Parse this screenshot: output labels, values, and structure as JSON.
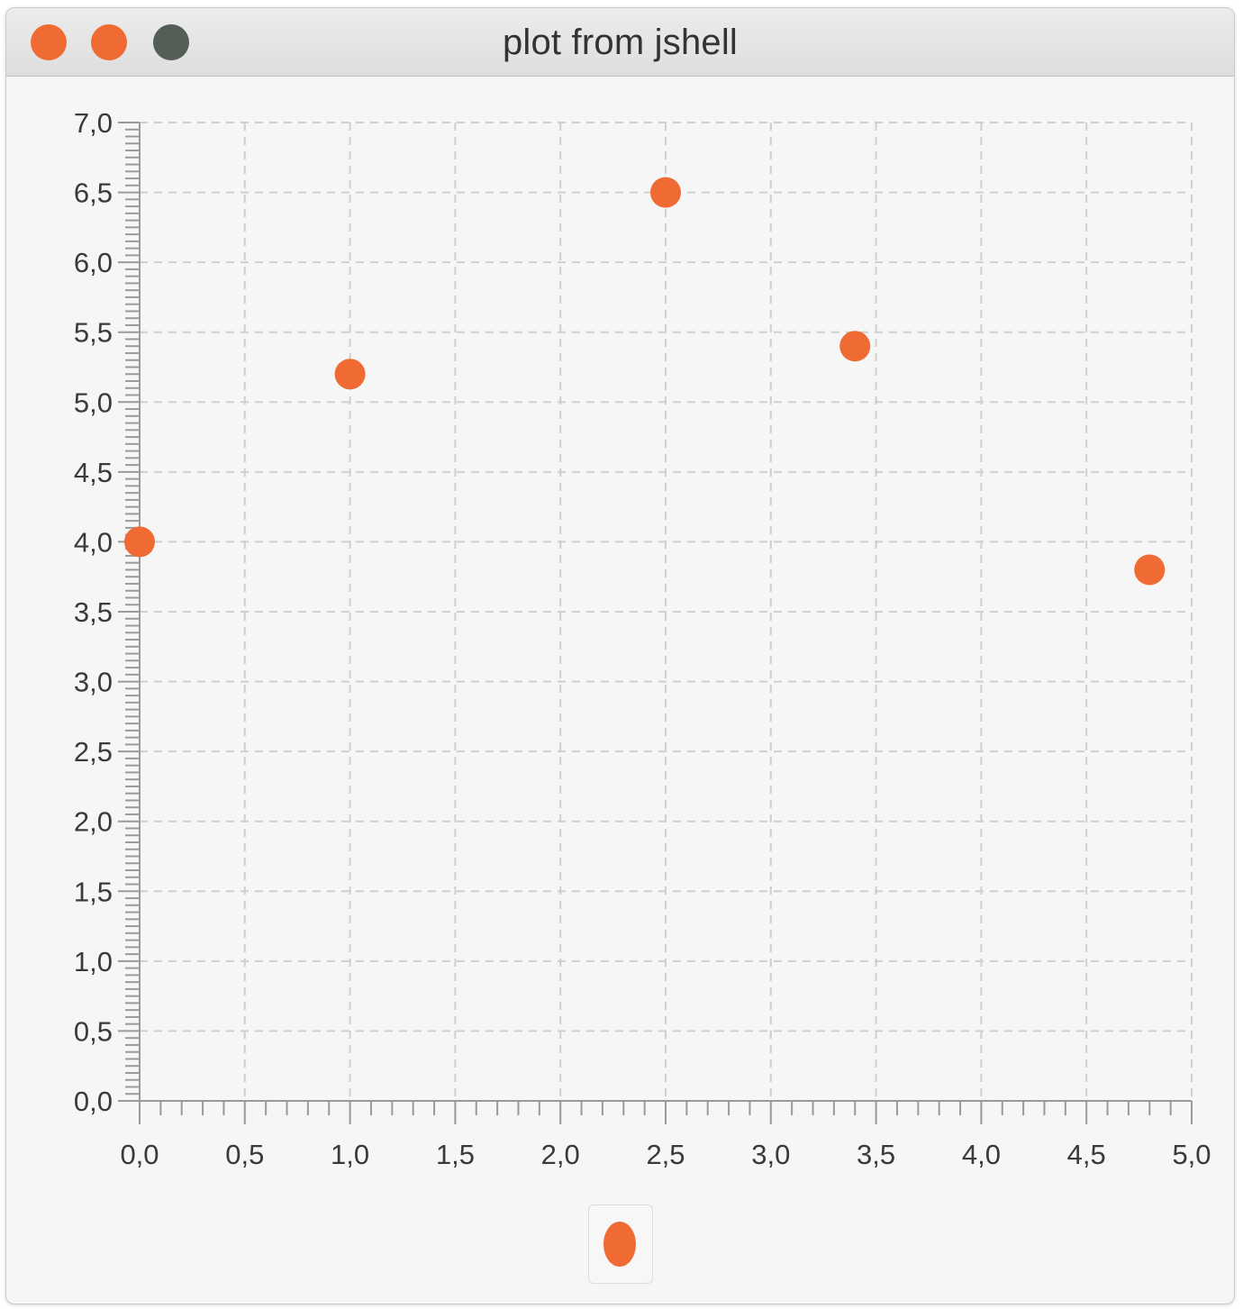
{
  "window": {
    "title": "plot from jshell",
    "buttons": {
      "close_color": "#ef6b33",
      "minimize_color": "#ef6b33",
      "zoom_color": "#555d57"
    }
  },
  "colors": {
    "accent": "#ef6b33",
    "grid": "#cfcfcf",
    "axis": "#9a9a9a"
  },
  "chart_data": {
    "type": "scatter",
    "title": "",
    "xlabel": "",
    "ylabel": "",
    "xlim": [
      0,
      5
    ],
    "ylim": [
      0,
      7
    ],
    "x_ticks": [
      "0,0",
      "0,5",
      "1,0",
      "1,5",
      "2,0",
      "2,5",
      "3,0",
      "3,5",
      "4,0",
      "4,5",
      "5,0"
    ],
    "y_ticks": [
      "0,0",
      "0,5",
      "1,0",
      "1,5",
      "2,0",
      "2,5",
      "3,0",
      "3,5",
      "4,0",
      "4,5",
      "5,0",
      "5,5",
      "6,0",
      "6,5",
      "7,0"
    ],
    "grid": true,
    "legend_placement": "bottom-center",
    "series": [
      {
        "color": "#ef6b33",
        "x": [
          0.0,
          1.0,
          2.5,
          3.4,
          4.8
        ],
        "y": [
          4.0,
          5.2,
          6.5,
          5.4,
          3.8
        ]
      }
    ]
  }
}
